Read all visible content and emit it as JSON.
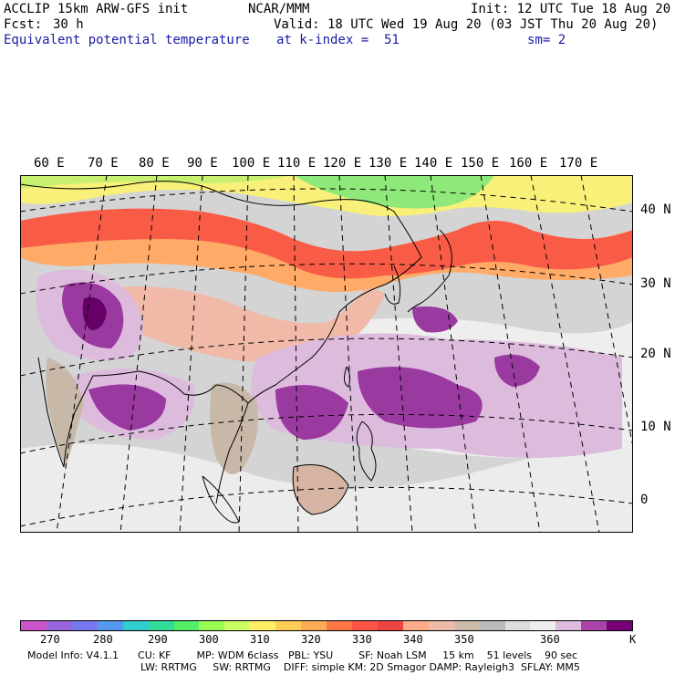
{
  "header": {
    "model": "ACCLIP 15km ARW-GFS init",
    "org": "NCAR/MMM",
    "init": "Init: 12 UTC Tue 18 Aug 20",
    "fcst_label": "Fcst:",
    "fcst_value": "30 h",
    "valid": "Valid: 18 UTC Wed 19 Aug 20 (03 JST Thu 20 Aug 20)",
    "field": "Equivalent potential temperature",
    "level": "at k-index =  51",
    "smooth": "sm= 2"
  },
  "map": {
    "region": "East and South Asia, Western Pacific",
    "lon_labels": [
      "60 E",
      "70 E",
      "80 E",
      "90 E",
      "100 E",
      "110 E",
      "120 E",
      "130 E",
      "140 E",
      "150 E",
      "160 E",
      "170 E"
    ],
    "lat_labels": [
      "40 N",
      "30 N",
      "20 N",
      "10 N",
      "0"
    ],
    "ocean_color": "#c8c8c8",
    "land_colors": {
      "cool_north": "#8fe87a",
      "warm_band": "#f95c46",
      "moist_purple": "#9a3aa0"
    }
  },
  "colorbar": {
    "unit": "K",
    "colors": [
      "#cc55cc",
      "#9966dd",
      "#7777ee",
      "#5599ee",
      "#33cccc",
      "#33dd99",
      "#55ee66",
      "#99ff55",
      "#ccff66",
      "#ffee66",
      "#ffcc55",
      "#ffaa55",
      "#ff7744",
      "#ff5544",
      "#ee4444",
      "#ffaa88",
      "#eebbaa",
      "#ccbbaa",
      "#bbbbbb",
      "#dddddd",
      "#eeeeee",
      "#ddbbdd",
      "#aa44aa",
      "#770077"
    ],
    "ticks": [
      "270",
      "280",
      "290",
      "300",
      "310",
      "320",
      "330",
      "340",
      "350",
      "360"
    ]
  },
  "footer": {
    "line1": "Model Info: V4.1.1      CU: KF        MP: WDM 6class   PBL: YSU        SF: Noah LSM     15 km    51 levels    90 sec",
    "line2": "LW: RRTMG     SW: RRTMG    DIFF: simple KM: 2D Smagor DAMP: Rayleigh3  SFLAY: MM5"
  }
}
